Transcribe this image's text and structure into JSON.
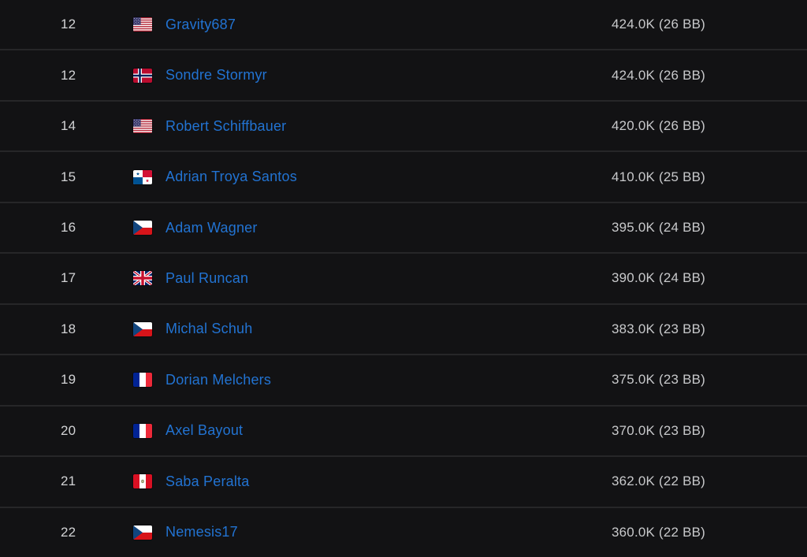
{
  "colors": {
    "background": "#121214",
    "row_divider": "#2a2a2e",
    "link_blue": "#2273d2",
    "rank_text": "#d2d3d5",
    "stack_text": "#c8c9cb"
  },
  "leaderboard": {
    "rows": [
      {
        "rank": "12",
        "flag": "united-states",
        "name": "Gravity687",
        "stack": "424.0K (26 BB)"
      },
      {
        "rank": "12",
        "flag": "norway",
        "name": "Sondre Stormyr",
        "stack": "424.0K (26 BB)"
      },
      {
        "rank": "14",
        "flag": "united-states",
        "name": "Robert Schiffbauer",
        "stack": "420.0K (26 BB)"
      },
      {
        "rank": "15",
        "flag": "panama",
        "name": "Adrian Troya Santos",
        "stack": "410.0K (25 BB)"
      },
      {
        "rank": "16",
        "flag": "czech-republic",
        "name": "Adam Wagner",
        "stack": "395.0K (24 BB)"
      },
      {
        "rank": "17",
        "flag": "united-kingdom",
        "name": "Paul Runcan",
        "stack": "390.0K (24 BB)"
      },
      {
        "rank": "18",
        "flag": "czech-republic",
        "name": "Michal Schuh",
        "stack": "383.0K (23 BB)"
      },
      {
        "rank": "19",
        "flag": "france",
        "name": "Dorian Melchers",
        "stack": "375.0K (23 BB)"
      },
      {
        "rank": "20",
        "flag": "france",
        "name": "Axel Bayout",
        "stack": "370.0K (23 BB)"
      },
      {
        "rank": "21",
        "flag": "peru",
        "name": "Saba Peralta",
        "stack": "362.0K (22 BB)"
      },
      {
        "rank": "22",
        "flag": "czech-republic",
        "name": "Nemesis17",
        "stack": "360.0K (22 BB)"
      }
    ]
  }
}
